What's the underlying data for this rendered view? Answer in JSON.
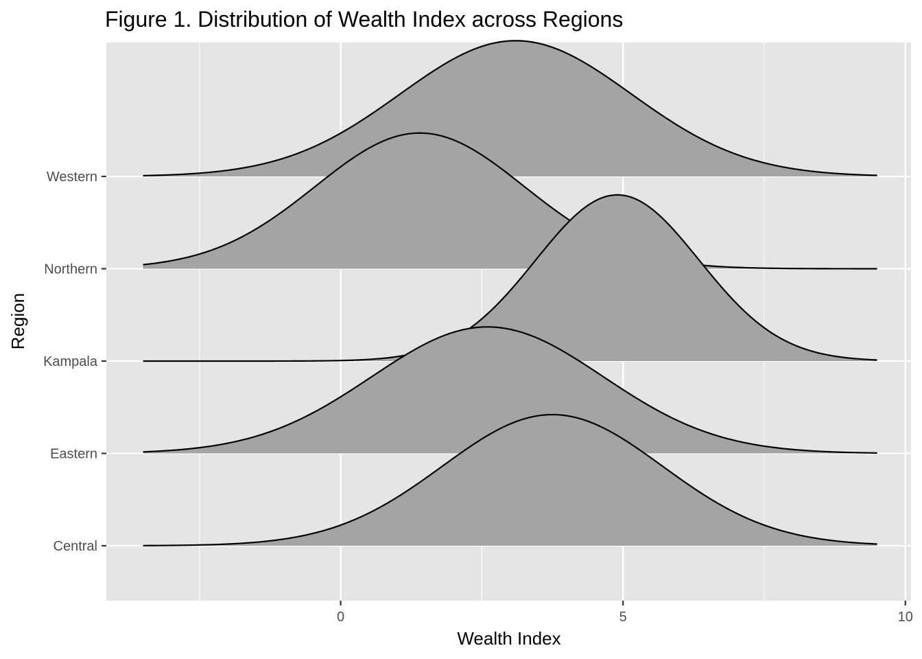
{
  "chart_data": {
    "type": "ridgeline",
    "title": "Figure 1. Distribution of Wealth Index across Regions",
    "xlabel": "Wealth Index",
    "ylabel": "Region",
    "xlim": [
      -4.15,
      10.1
    ],
    "x_ticks": [
      0,
      5,
      10
    ],
    "x_tick_labels": [
      "0",
      "5",
      "10"
    ],
    "x_minor_ticks": [
      -2.5,
      2.5,
      7.5
    ],
    "x_range": [
      -3.5,
      9.5
    ],
    "grid": true,
    "fill_color": "#a4a4a4",
    "line_color": "#000000",
    "panel_color": "#e5e5e5",
    "series": [
      {
        "name": "Central",
        "mean": 3.75,
        "sd": 1.95,
        "peak_height": 1.42
      },
      {
        "name": "Eastern",
        "mean": 2.6,
        "sd": 2.05,
        "peak_height": 1.37
      },
      {
        "name": "Kampala",
        "mean": 4.9,
        "sd": 1.45,
        "peak_height": 1.8
      },
      {
        "name": "Northern",
        "mean": 1.4,
        "sd": 1.85,
        "peak_height": 1.47
      },
      {
        "name": "Western",
        "mean": 3.1,
        "sd": 2.05,
        "peak_height": 1.47
      }
    ]
  }
}
